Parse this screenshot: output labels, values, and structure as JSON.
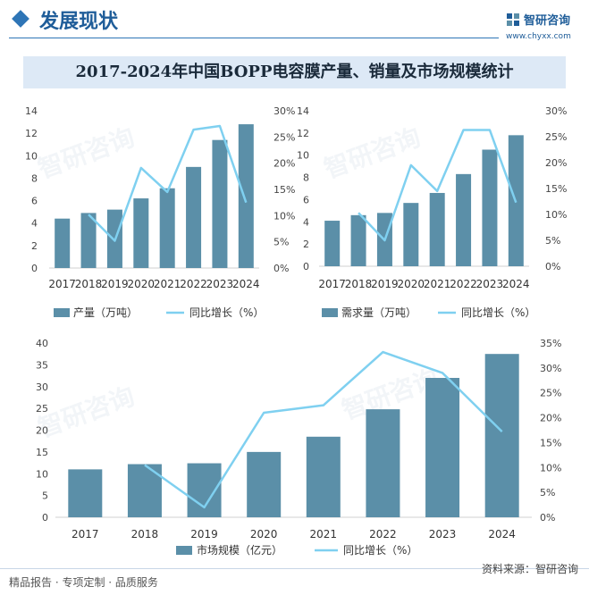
{
  "header": {
    "section_title": "发展现状",
    "brand_name": "智研咨询",
    "brand_url": "www.chyxx.com"
  },
  "title": "2017-2024年中国BOPP电容膜产量、销量及市场规模统计",
  "footer": {
    "tagline": "精品报告 · 专项定制 · 品质服务",
    "source": "资料来源：智研咨询"
  },
  "colors": {
    "bar": "#5b8fa8",
    "line": "#7fd0f0",
    "accent": "#2e75b6"
  },
  "chart_data": [
    {
      "type": "bar",
      "categories": [
        "2017",
        "2018",
        "2019",
        "2020",
        "2021",
        "2022",
        "2023",
        "2024"
      ],
      "series": [
        {
          "name": "产量（万吨）",
          "type": "bar",
          "axis": "left",
          "values": [
            4.4,
            4.9,
            5.2,
            6.2,
            7.1,
            9.0,
            11.4,
            12.8
          ]
        },
        {
          "name": "同比增长（%）",
          "type": "line",
          "axis": "right",
          "values": [
            null,
            10.2,
            5.2,
            19.1,
            14.5,
            26.4,
            27.1,
            12.5
          ]
        }
      ],
      "ylim": [
        0,
        14
      ],
      "yticks": [
        0,
        2,
        4,
        6,
        8,
        10,
        12,
        14
      ],
      "y2lim": [
        0,
        30
      ],
      "y2ticks": [
        "0%",
        "5%",
        "10%",
        "15%",
        "20%",
        "25%",
        "30%"
      ]
    },
    {
      "type": "bar",
      "categories": [
        "2017",
        "2018",
        "2019",
        "2020",
        "2021",
        "2022",
        "2023",
        "2024"
      ],
      "series": [
        {
          "name": "需求量（万吨）",
          "type": "bar",
          "axis": "left",
          "values": [
            4.1,
            4.6,
            4.8,
            5.7,
            6.6,
            8.3,
            10.5,
            11.8
          ]
        },
        {
          "name": "同比增长（%）",
          "type": "line",
          "axis": "right",
          "values": [
            null,
            10.3,
            5.0,
            19.5,
            14.5,
            26.3,
            26.3,
            12.3
          ]
        }
      ],
      "ylim": [
        0,
        14
      ],
      "yticks": [
        0,
        2,
        4,
        6,
        8,
        10,
        12,
        14
      ],
      "y2lim": [
        0,
        30
      ],
      "y2ticks": [
        "0%",
        "5%",
        "10%",
        "15%",
        "20%",
        "25%",
        "30%"
      ]
    },
    {
      "type": "bar",
      "categories": [
        "2017",
        "2018",
        "2019",
        "2020",
        "2021",
        "2022",
        "2023",
        "2024"
      ],
      "series": [
        {
          "name": "市场规模（亿元）",
          "type": "bar",
          "axis": "left",
          "values": [
            11.0,
            12.2,
            12.4,
            15.0,
            18.5,
            24.8,
            32.0,
            37.5
          ]
        },
        {
          "name": "同比增长（%）",
          "type": "line",
          "axis": "right",
          "values": [
            null,
            10.5,
            2.0,
            21.0,
            22.5,
            33.2,
            29.0,
            17.2
          ]
        }
      ],
      "ylim": [
        0,
        40
      ],
      "yticks": [
        0,
        5,
        10,
        15,
        20,
        25,
        30,
        35,
        40
      ],
      "y2lim": [
        0,
        35
      ],
      "y2ticks": [
        "0%",
        "5%",
        "10%",
        "15%",
        "20%",
        "25%",
        "30%",
        "35%"
      ]
    }
  ]
}
